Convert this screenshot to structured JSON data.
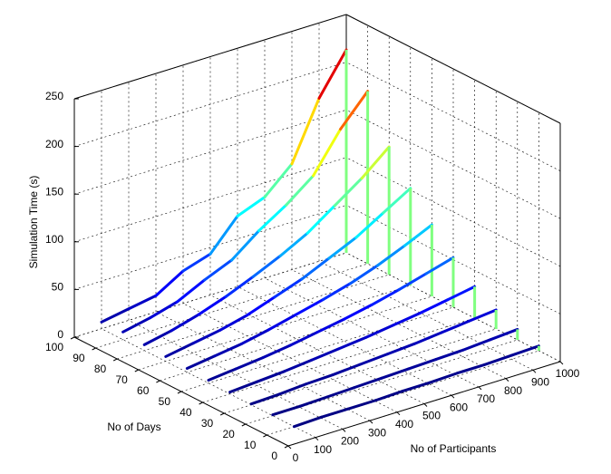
{
  "chart_data": {
    "type": "waterfall3d",
    "zlabel": "Simulation Time (s)",
    "ylabel": "No of Days",
    "xlabel": "No of Participants",
    "x": [
      100,
      200,
      300,
      400,
      500,
      600,
      700,
      800,
      900,
      1000
    ],
    "xlim": [
      0,
      1000
    ],
    "xticks": [
      0,
      100,
      200,
      300,
      400,
      500,
      600,
      700,
      800,
      900,
      1000
    ],
    "ylim": [
      0,
      100
    ],
    "yticks": [
      0,
      10,
      20,
      30,
      40,
      50,
      60,
      70,
      80,
      90,
      100
    ],
    "zlim": [
      0,
      250
    ],
    "zticks": [
      0,
      50,
      100,
      150,
      200,
      250
    ],
    "grid": true,
    "colormap": "jet",
    "curtain_color": "#80ff80",
    "series": [
      {
        "y": 10,
        "values": [
          0,
          1,
          1,
          1,
          2,
          2,
          3,
          3,
          4,
          5
        ]
      },
      {
        "y": 20,
        "values": [
          1,
          1,
          2,
          3,
          4,
          5,
          6,
          7,
          9,
          11
        ]
      },
      {
        "y": 30,
        "values": [
          1,
          2,
          4,
          5,
          7,
          9,
          11,
          14,
          17,
          20
        ]
      },
      {
        "y": 40,
        "values": [
          2,
          4,
          6,
          9,
          12,
          15,
          19,
          23,
          28,
          33
        ]
      },
      {
        "y": 50,
        "values": [
          3,
          6,
          9,
          13,
          18,
          23,
          29,
          36,
          44,
          52
        ]
      },
      {
        "y": 60,
        "values": [
          4,
          8,
          12,
          18,
          25,
          32,
          40,
          50,
          62,
          75
        ]
      },
      {
        "y": 70,
        "values": [
          5,
          10,
          15,
          22,
          32,
          42,
          55,
          68,
          85,
          102
        ]
      },
      {
        "y": 80,
        "values": [
          6,
          12,
          20,
          30,
          42,
          55,
          70,
          90,
          110,
          134
        ]
      },
      {
        "y": 90,
        "values": [
          8,
          14,
          22,
          36,
          48,
          70,
          88,
          110,
          150,
          181
        ]
      },
      {
        "y": 100,
        "values": [
          7,
          12,
          17,
          34,
          43,
          74,
          85,
          111,
          171,
          213
        ]
      }
    ]
  }
}
